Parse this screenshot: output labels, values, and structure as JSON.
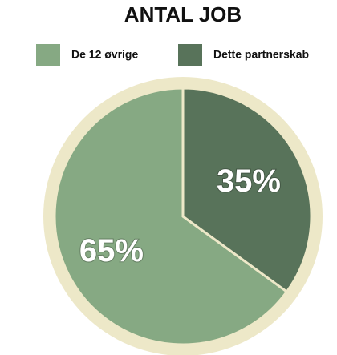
{
  "chart_data": {
    "type": "pie",
    "title": "ANTAL JOB",
    "categories": [
      "De 12 øvrige",
      "Dette partnerskab"
    ],
    "values": [
      65,
      35
    ],
    "value_labels": [
      "65%",
      "35%"
    ],
    "colors": [
      "#86a983",
      "#58735a"
    ],
    "legend": "top"
  }
}
